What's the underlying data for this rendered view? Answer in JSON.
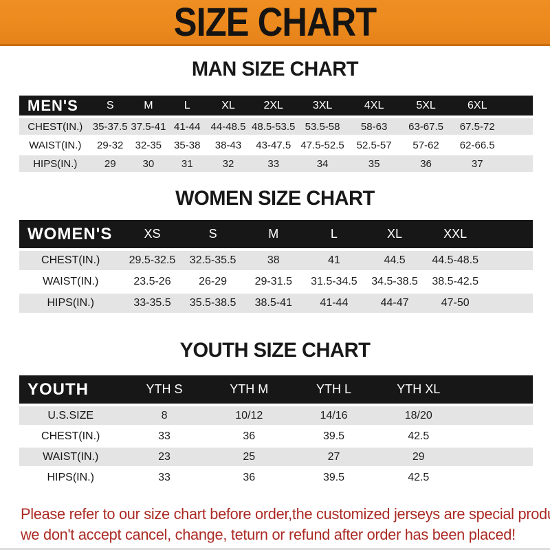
{
  "banner": {
    "title": "SIZE CHART"
  },
  "sections": [
    {
      "id": "men",
      "heading": "MAN SIZE CHART",
      "header_label": "MEN'S",
      "columns": [
        "S",
        "M",
        "L",
        "XL",
        "2XL",
        "3XL",
        "4XL",
        "5XL",
        "6XL"
      ],
      "rows": [
        {
          "label": "CHEST(IN.)",
          "values": [
            "35-37.5",
            "37.5-41",
            "41-44",
            "44-48.5",
            "48.5-53.5",
            "53.5-58",
            "58-63",
            "63-67.5",
            "67.5-72"
          ]
        },
        {
          "label": "WAIST(IN.)",
          "values": [
            "29-32",
            "32-35",
            "35-38",
            "38-43",
            "43-47.5",
            "47.5-52.5",
            "52.5-57",
            "57-62",
            "62-66.5"
          ]
        },
        {
          "label": "HIPS(IN.)",
          "values": [
            "29",
            "30",
            "31",
            "32",
            "33",
            "34",
            "35",
            "36",
            "37"
          ]
        }
      ]
    },
    {
      "id": "women",
      "heading": "WOMEN SIZE CHART",
      "header_label": "WOMEN'S",
      "columns": [
        "XS",
        "S",
        "M",
        "L",
        "XL",
        "XXL"
      ],
      "rows": [
        {
          "label": "CHEST(IN.)",
          "values": [
            "29.5-32.5",
            "32.5-35.5",
            "38",
            "41",
            "44.5",
            "44.5-48.5"
          ]
        },
        {
          "label": "WAIST(IN.)",
          "values": [
            "23.5-26",
            "26-29",
            "29-31.5",
            "31.5-34.5",
            "34.5-38.5",
            "38.5-42.5"
          ]
        },
        {
          "label": "HIPS(IN.)",
          "values": [
            "33-35.5",
            "35.5-38.5",
            "38.5-41",
            "41-44",
            "44-47",
            "47-50"
          ]
        }
      ]
    },
    {
      "id": "youth",
      "heading": "YOUTH SIZE CHART",
      "header_label": "YOUTH",
      "columns": [
        "YTH S",
        "YTH M",
        "YTH L",
        "YTH XL"
      ],
      "rows": [
        {
          "label": "U.S.SIZE",
          "values": [
            "8",
            "10/12",
            "14/16",
            "18/20"
          ]
        },
        {
          "label": "CHEST(IN.)",
          "values": [
            "33",
            "36",
            "39.5",
            "42.5"
          ]
        },
        {
          "label": "WAIST(IN.)",
          "values": [
            "23",
            "25",
            "27",
            "29"
          ]
        },
        {
          "label": "HIPS(IN.)",
          "values": [
            "33",
            "36",
            "39.5",
            "42.5"
          ]
        }
      ]
    }
  ],
  "footer": {
    "line1": "Please refer to our size chart before order,the customized jerseys are special products,",
    "line2": "we don't accept cancel, change, teturn or refund after order has been placed!"
  },
  "colors": {
    "banner_orange": "#ec8a1e",
    "banner_border": "#c96e10",
    "bar_black": "#171717",
    "row_gray": "#e4e4e5",
    "note_red": "#ab2a24"
  }
}
